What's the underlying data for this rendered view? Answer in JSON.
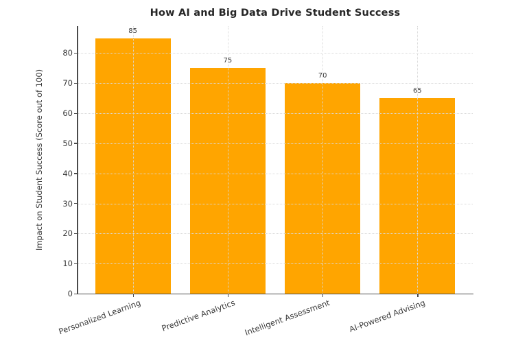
{
  "figure": {
    "title": "How AI and Big Data Drive Student Success"
  },
  "chart_data": {
    "type": "bar",
    "title": "How AI and Big Data Drive Student Success",
    "categories": [
      "Personalized Learning",
      "Predictive Analytics",
      "Intelligent Assessment",
      "AI-Powered Advising"
    ],
    "values": [
      85,
      75,
      70,
      65
    ],
    "value_labels": [
      "85",
      "75",
      "70",
      "65"
    ],
    "xlabel": "",
    "ylabel": "Impact on Student Success (Score out of 100)",
    "ylim": [
      0,
      89
    ],
    "yticks": [
      0,
      10,
      20,
      30,
      40,
      50,
      60,
      70,
      80
    ],
    "grid": true,
    "grid_style": "dotted",
    "grid_over_bars": true,
    "legend": "none",
    "x_tick_rotation_deg": 20,
    "colors": {
      "bar": "#FFA500",
      "grid": "#d9d9d9",
      "spine": "#4a4a4a",
      "title_text": "#262626",
      "tick_text": "#3a3a3a",
      "value_label_text": "#3a3a3a",
      "background": "#ffffff"
    }
  }
}
